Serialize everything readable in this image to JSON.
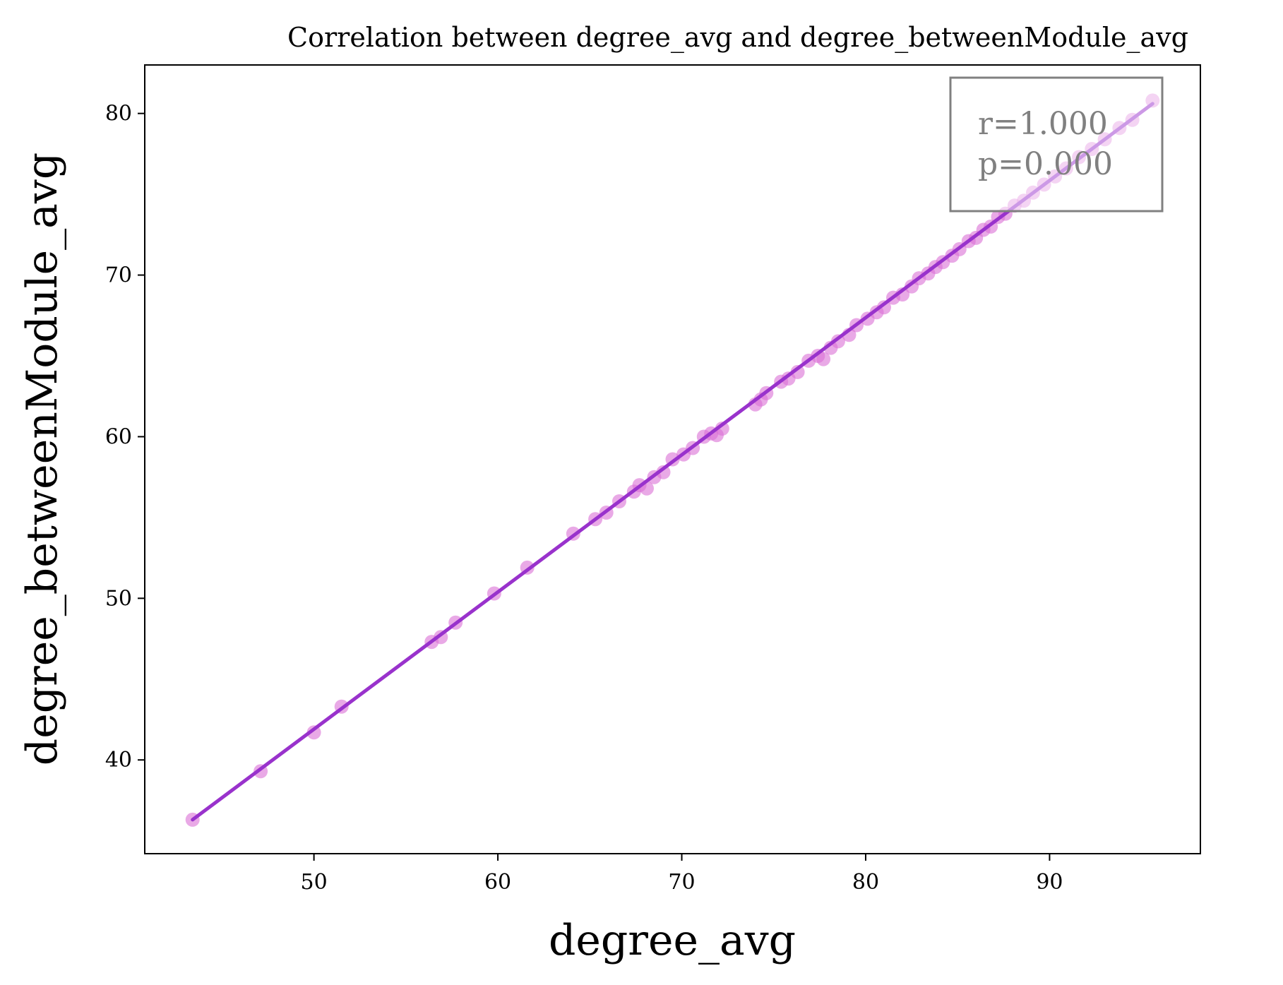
{
  "chart_data": {
    "type": "scatter",
    "title": "Correlation between degree_avg and degree_betweenModule_avg",
    "xlabel": "degree_avg",
    "ylabel": "degree_betweenModule_avg",
    "xlim": [
      40.8,
      98.2
    ],
    "ylim": [
      34.2,
      83.0
    ],
    "xticks": [
      50,
      60,
      70,
      80,
      90
    ],
    "yticks": [
      40,
      50,
      60,
      70,
      80
    ],
    "grid": false,
    "point_color": "#da70d6",
    "line_color": "#9932cc",
    "fit_line": {
      "x": [
        43.4,
        95.6
      ],
      "y": [
        36.3,
        80.6
      ]
    },
    "annotation": {
      "lines": [
        "r=1.000",
        "p=0.000"
      ],
      "position": "top-right"
    },
    "x": [
      43.4,
      47.1,
      50.0,
      51.5,
      56.4,
      56.9,
      57.7,
      59.8,
      61.6,
      64.1,
      65.3,
      65.9,
      66.6,
      67.4,
      67.7,
      68.1,
      68.5,
      69.0,
      69.5,
      70.1,
      70.6,
      71.2,
      71.6,
      71.9,
      72.2,
      74.0,
      74.3,
      74.6,
      75.4,
      75.8,
      76.3,
      76.9,
      77.4,
      77.7,
      78.1,
      78.5,
      79.1,
      79.5,
      80.1,
      80.6,
      81.0,
      81.5,
      82.0,
      82.5,
      82.9,
      83.4,
      83.8,
      84.2,
      84.7,
      85.1,
      85.6,
      86.0,
      86.4,
      86.8,
      87.2,
      87.6,
      88.1,
      88.6,
      89.1,
      89.7,
      90.3,
      90.9,
      91.6,
      92.3,
      93.0,
      93.8,
      94.5,
      95.6
    ],
    "y": [
      36.3,
      39.3,
      41.7,
      43.3,
      47.3,
      47.6,
      48.5,
      50.3,
      51.9,
      54.0,
      54.9,
      55.3,
      56.0,
      56.6,
      57.0,
      56.8,
      57.5,
      57.8,
      58.6,
      58.9,
      59.3,
      60.0,
      60.2,
      60.1,
      60.5,
      62.0,
      62.3,
      62.7,
      63.4,
      63.6,
      64.0,
      64.7,
      65.0,
      64.8,
      65.5,
      65.9,
      66.3,
      66.9,
      67.3,
      67.7,
      68.0,
      68.6,
      68.8,
      69.3,
      69.8,
      70.1,
      70.5,
      70.8,
      71.2,
      71.6,
      72.1,
      72.3,
      72.8,
      73.0,
      73.6,
      73.8,
      74.3,
      74.6,
      75.1,
      75.6,
      76.1,
      76.6,
      77.3,
      77.8,
      78.4,
      79.1,
      79.6,
      80.8
    ]
  }
}
